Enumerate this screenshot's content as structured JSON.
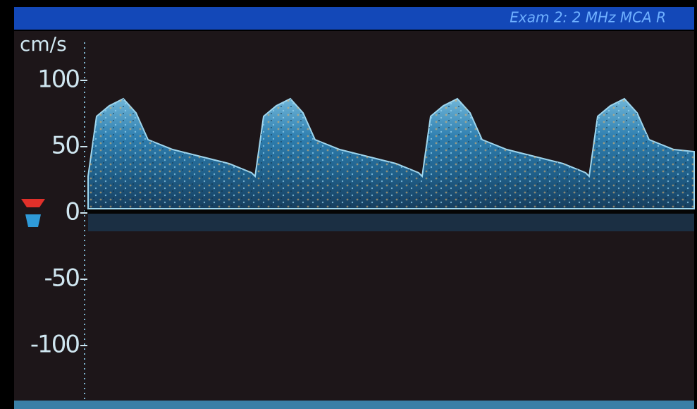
{
  "header": {
    "label": "Exam 2: 2 MHz MCA R"
  },
  "axis": {
    "unit": "cm/s",
    "ticks": [
      100,
      50,
      0,
      -50,
      -100
    ]
  }
}
